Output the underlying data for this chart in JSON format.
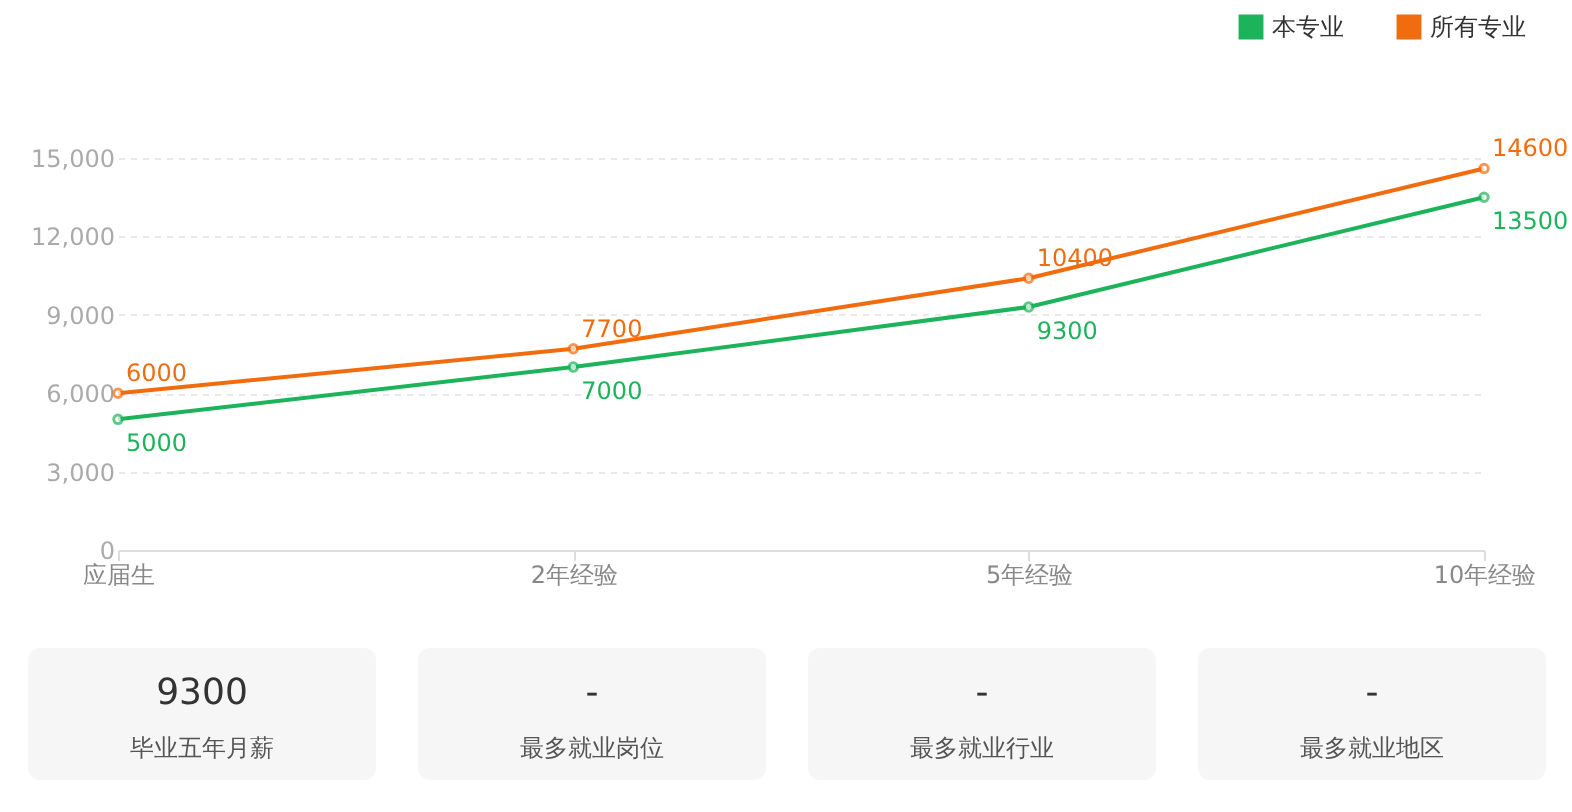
{
  "chart_data": [
    {
      "type": "line",
      "categories": [
        "应届生",
        "2年经验",
        "5年经验",
        "10年经验"
      ],
      "series": [
        {
          "name": "本专业",
          "color": "#1db35a",
          "values": [
            5000,
            7000,
            9300,
            13500
          ]
        },
        {
          "name": "所有专业",
          "color": "#f06c0f",
          "values": [
            6000,
            7700,
            10400,
            14600
          ]
        }
      ],
      "ylim": [
        0,
        15000
      ],
      "yticks": [
        0,
        {
          "value": 3000,
          "label": "3,000"
        },
        {
          "value": 6000,
          "label": "6,000"
        },
        {
          "value": 9000,
          "label": "9,000"
        },
        {
          "value": 12000,
          "label": "12,000"
        },
        {
          "value": 15000,
          "label": "15,000"
        }
      ],
      "grid": "y",
      "legend": "top right",
      "marker": "circle",
      "data_labels": true
    },
    {
      "type": "other",
      "annotations": [
        "9300",
        "毕业五年月薪",
        "-",
        "最多就业岗位",
        "-",
        "最多就业行业",
        "-",
        "最多就业地区"
      ]
    }
  ]
}
